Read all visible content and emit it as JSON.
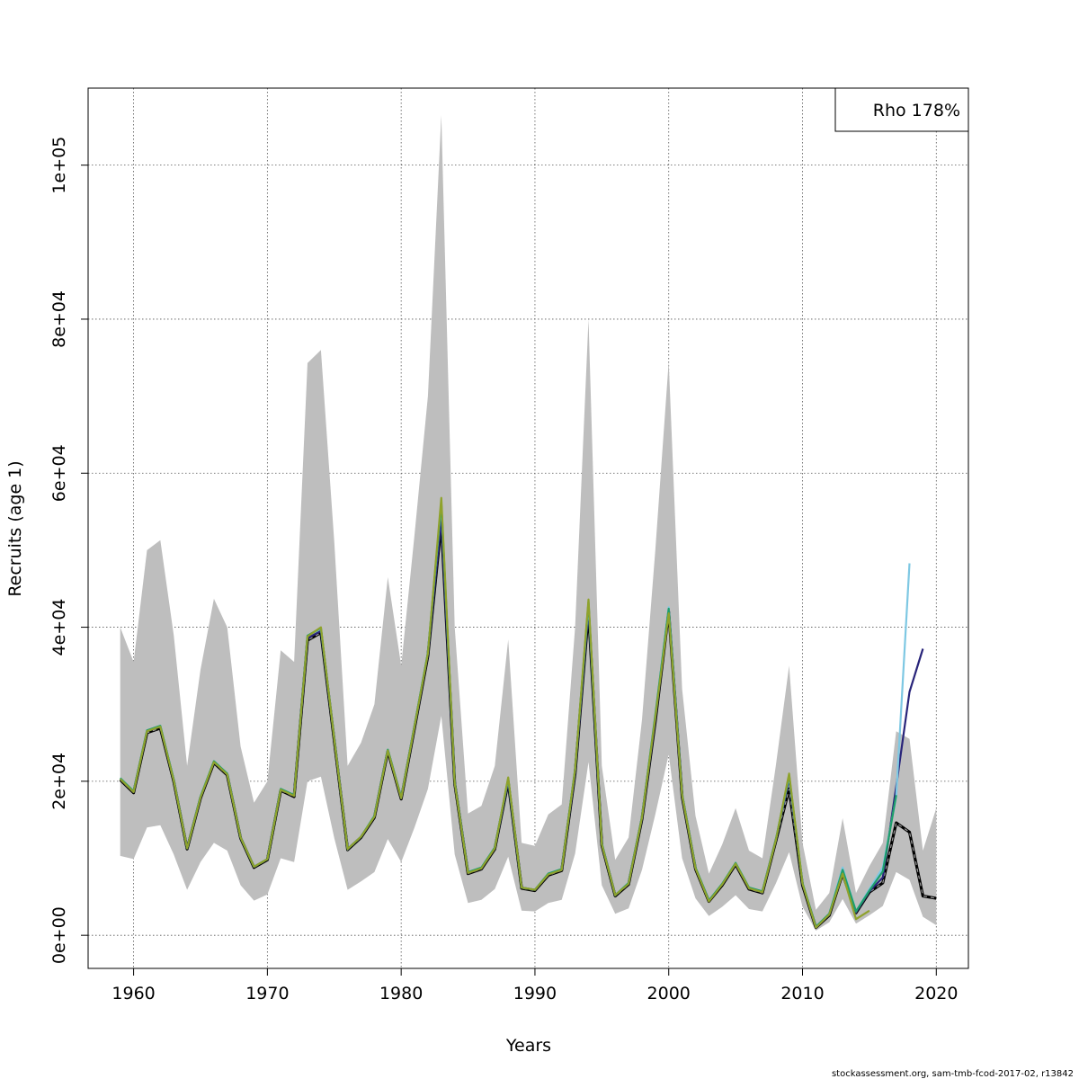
{
  "chart_data": {
    "type": "line",
    "xlabel": "Years",
    "ylabel": "Recruits (age 1)",
    "xlim": [
      1956.6,
      2022.4
    ],
    "ylim": [
      -4300,
      110000
    ],
    "x_ticks": [
      1960,
      1970,
      1980,
      1990,
      2000,
      2010,
      2020
    ],
    "y_ticks": [
      0,
      20000,
      40000,
      60000,
      80000,
      100000
    ],
    "y_tick_labels": [
      "0e+00",
      "2e+04",
      "4e+04",
      "6e+04",
      "8e+04",
      "1e+05"
    ],
    "grid": true,
    "legend": {
      "position": "top-right",
      "text": "Rho 178%"
    },
    "footer": "stockassessment.org, sam-tmb-fcod-2017-02, r13842",
    "band": {
      "years": [
        1959,
        1960,
        1961,
        1962,
        1963,
        1964,
        1965,
        1966,
        1967,
        1968,
        1969,
        1970,
        1971,
        1972,
        1973,
        1974,
        1975,
        1976,
        1977,
        1978,
        1979,
        1980,
        1981,
        1982,
        1983,
        1984,
        1985,
        1986,
        1987,
        1988,
        1989,
        1990,
        1991,
        1992,
        1993,
        1994,
        1995,
        1996,
        1997,
        1998,
        1999,
        2000,
        2001,
        2002,
        2003,
        2004,
        2005,
        2006,
        2007,
        2008,
        2009,
        2010,
        2011,
        2012,
        2013,
        2014,
        2015,
        2016,
        2017,
        2018,
        2019,
        2020
      ],
      "upper": [
        40000,
        35500,
        50000,
        51300,
        39000,
        22000,
        34500,
        43700,
        40000,
        24500,
        17200,
        20000,
        37000,
        35500,
        74300,
        76000,
        51000,
        22000,
        25000,
        30000,
        46500,
        35000,
        52000,
        70000,
        106500,
        40000,
        15800,
        16800,
        22000,
        38400,
        12000,
        11600,
        15700,
        17000,
        40000,
        80000,
        22000,
        9800,
        12700,
        28000,
        50000,
        74500,
        32000,
        15500,
        8000,
        11800,
        16500,
        11000,
        10000,
        22000,
        35000,
        12000,
        3300,
        5500,
        15200,
        5500,
        9000,
        12000,
        26500,
        25500,
        11000,
        16500
      ],
      "lower": [
        10300,
        9900,
        14000,
        14300,
        10500,
        5900,
        9500,
        12000,
        11000,
        6500,
        4500,
        5300,
        10000,
        9500,
        20000,
        20600,
        12600,
        5900,
        7000,
        8200,
        12500,
        9500,
        14000,
        19000,
        28500,
        10500,
        4200,
        4600,
        6000,
        10200,
        3200,
        3100,
        4200,
        4600,
        10600,
        22500,
        6500,
        2800,
        3500,
        8500,
        15700,
        23500,
        10000,
        4800,
        2500,
        3700,
        5200,
        3400,
        3100,
        6700,
        10800,
        3700,
        600,
        1700,
        4700,
        1500,
        2600,
        3800,
        8200,
        7200,
        2400,
        1300
      ]
    },
    "series": [
      {
        "color": "#000000",
        "dashed": true,
        "x": [
          1959,
          1960,
          1961,
          1962,
          1963,
          1964,
          1965,
          1966,
          1967,
          1968,
          1969,
          1970,
          1971,
          1972,
          1973,
          1974,
          1975,
          1976,
          1977,
          1978,
          1979,
          1980,
          1981,
          1982,
          1983,
          1984,
          1985,
          1986,
          1987,
          1988,
          1989,
          1990,
          1991,
          1992,
          1993,
          1994,
          1995,
          1996,
          1997,
          1998,
          1999,
          2000,
          2001,
          2002,
          2003,
          2004,
          2005,
          2006,
          2007,
          2008,
          2009,
          2010,
          2011,
          2012,
          2013,
          2014,
          2015,
          2016,
          2017,
          2018,
          2019,
          2020
        ],
        "y": [
          20200,
          18500,
          26300,
          26900,
          20000,
          11200,
          17800,
          22400,
          20800,
          12600,
          8800,
          9800,
          18800,
          18000,
          38300,
          39300,
          25200,
          11100,
          12700,
          15300,
          23900,
          17700,
          26900,
          36300,
          53500,
          19700,
          8000,
          8600,
          11200,
          19900,
          6100,
          5800,
          7800,
          8400,
          21000,
          42000,
          11700,
          5100,
          6600,
          15100,
          27800,
          42000,
          18000,
          8600,
          4400,
          6500,
          9200,
          6000,
          5500,
          12200,
          19000,
          6500,
          1000,
          2600,
          8000,
          2900,
          5600,
          6800,
          14600,
          13400,
          5100,
          4800
        ]
      },
      {
        "color": "#28247a",
        "dashed": false,
        "x": [
          1959,
          1960,
          1961,
          1962,
          1963,
          1964,
          1965,
          1966,
          1967,
          1968,
          1969,
          1970,
          1971,
          1972,
          1973,
          1974,
          1975,
          1976,
          1977,
          1978,
          1979,
          1980,
          1981,
          1982,
          1983,
          1984,
          1985,
          1986,
          1987,
          1988,
          1989,
          1990,
          1991,
          1992,
          1993,
          1994,
          1995,
          1996,
          1997,
          1998,
          1999,
          2000,
          2001,
          2002,
          2003,
          2004,
          2005,
          2006,
          2007,
          2008,
          2009,
          2010,
          2011,
          2012,
          2013,
          2014,
          2015,
          2016,
          2017,
          2018,
          2019
        ],
        "y": [
          20300,
          18600,
          26500,
          27100,
          20100,
          11300,
          17900,
          22500,
          20900,
          12700,
          8900,
          9900,
          18900,
          18100,
          38600,
          39500,
          25400,
          11200,
          12800,
          15400,
          24000,
          17800,
          27000,
          36500,
          54000,
          19800,
          8100,
          8700,
          11300,
          20000,
          6200,
          5900,
          7900,
          8500,
          21100,
          42400,
          11800,
          5200,
          6700,
          15200,
          28000,
          42200,
          18100,
          8700,
          4500,
          6600,
          9300,
          6100,
          5600,
          12300,
          20300,
          6700,
          1000,
          2700,
          8300,
          3000,
          5700,
          7500,
          19300,
          31600,
          37200
        ]
      },
      {
        "color": "#7ec8e3",
        "dashed": false,
        "x": [
          1959,
          1960,
          1961,
          1962,
          1963,
          1964,
          1965,
          1966,
          1967,
          1968,
          1969,
          1970,
          1971,
          1972,
          1973,
          1974,
          1975,
          1976,
          1977,
          1978,
          1979,
          1980,
          1981,
          1982,
          1983,
          1984,
          1985,
          1986,
          1987,
          1988,
          1989,
          1990,
          1991,
          1992,
          1993,
          1994,
          1995,
          1996,
          1997,
          1998,
          1999,
          2000,
          2001,
          2002,
          2003,
          2004,
          2005,
          2006,
          2007,
          2008,
          2009,
          2010,
          2011,
          2012,
          2013,
          2014,
          2015,
          2016,
          2017,
          2018
        ],
        "y": [
          20400,
          18700,
          26600,
          27200,
          20200,
          11300,
          18000,
          22600,
          21000,
          12700,
          8900,
          9900,
          19000,
          18200,
          38900,
          39800,
          25500,
          11200,
          12800,
          15500,
          24100,
          17900,
          27200,
          36700,
          56000,
          19900,
          8200,
          8800,
          11400,
          20300,
          6200,
          5900,
          8000,
          8600,
          21500,
          43000,
          11900,
          5200,
          6800,
          15400,
          28500,
          42600,
          18300,
          8800,
          4500,
          6700,
          9400,
          6200,
          5700,
          12400,
          20600,
          6800,
          1100,
          2800,
          8800,
          3100,
          6000,
          8800,
          18000,
          48300
        ]
      },
      {
        "color": "#1e9e6a",
        "dashed": false,
        "x": [
          1959,
          1960,
          1961,
          1962,
          1963,
          1964,
          1965,
          1966,
          1967,
          1968,
          1969,
          1970,
          1971,
          1972,
          1973,
          1974,
          1975,
          1976,
          1977,
          1978,
          1979,
          1980,
          1981,
          1982,
          1983,
          1984,
          1985,
          1986,
          1987,
          1988,
          1989,
          1990,
          1991,
          1992,
          1993,
          1994,
          1995,
          1996,
          1997,
          1998,
          1999,
          2000,
          2001,
          2002,
          2003,
          2004,
          2005,
          2006,
          2007,
          2008,
          2009,
          2010,
          2011,
          2012,
          2013,
          2014,
          2015,
          2016,
          2017
        ],
        "y": [
          20400,
          18700,
          26600,
          27200,
          20200,
          11300,
          18000,
          22600,
          21000,
          12700,
          8900,
          9900,
          19000,
          18200,
          38900,
          39900,
          25500,
          11200,
          12800,
          15500,
          24100,
          17900,
          27200,
          36700,
          56200,
          19900,
          8200,
          8800,
          11400,
          20400,
          6200,
          5900,
          8000,
          8600,
          21600,
          43300,
          11900,
          5200,
          6800,
          15400,
          28600,
          42400,
          18300,
          8800,
          4500,
          6700,
          9400,
          6200,
          5700,
          12400,
          20800,
          6800,
          1100,
          2800,
          8500,
          3100,
          5800,
          8300,
          18200
        ]
      },
      {
        "color": "#8fa22c",
        "dashed": false,
        "x": [
          1959,
          1960,
          1961,
          1962,
          1963,
          1964,
          1965,
          1966,
          1967,
          1968,
          1969,
          1970,
          1971,
          1972,
          1973,
          1974,
          1975,
          1976,
          1977,
          1978,
          1979,
          1980,
          1981,
          1982,
          1983,
          1984,
          1985,
          1986,
          1987,
          1988,
          1989,
          1990,
          1991,
          1992,
          1993,
          1994,
          1995,
          1996,
          1997,
          1998,
          1999,
          2000,
          2001,
          2002,
          2003,
          2004,
          2005,
          2006,
          2007,
          2008,
          2009,
          2010,
          2011,
          2012,
          2013,
          2014,
          2015
        ],
        "y": [
          20300,
          18600,
          26500,
          27100,
          20100,
          11300,
          17900,
          22500,
          20900,
          12700,
          8900,
          9900,
          18900,
          18100,
          38800,
          40000,
          25400,
          11200,
          12800,
          15400,
          24000,
          17800,
          27100,
          36600,
          56800,
          19800,
          8100,
          8700,
          11300,
          20500,
          6200,
          5900,
          7900,
          8500,
          21500,
          43600,
          11800,
          5200,
          6700,
          15300,
          28300,
          41800,
          18200,
          8700,
          4400,
          6600,
          9300,
          6100,
          5600,
          12300,
          21000,
          6700,
          1000,
          2700,
          8000,
          2100,
          3200
        ]
      }
    ]
  }
}
